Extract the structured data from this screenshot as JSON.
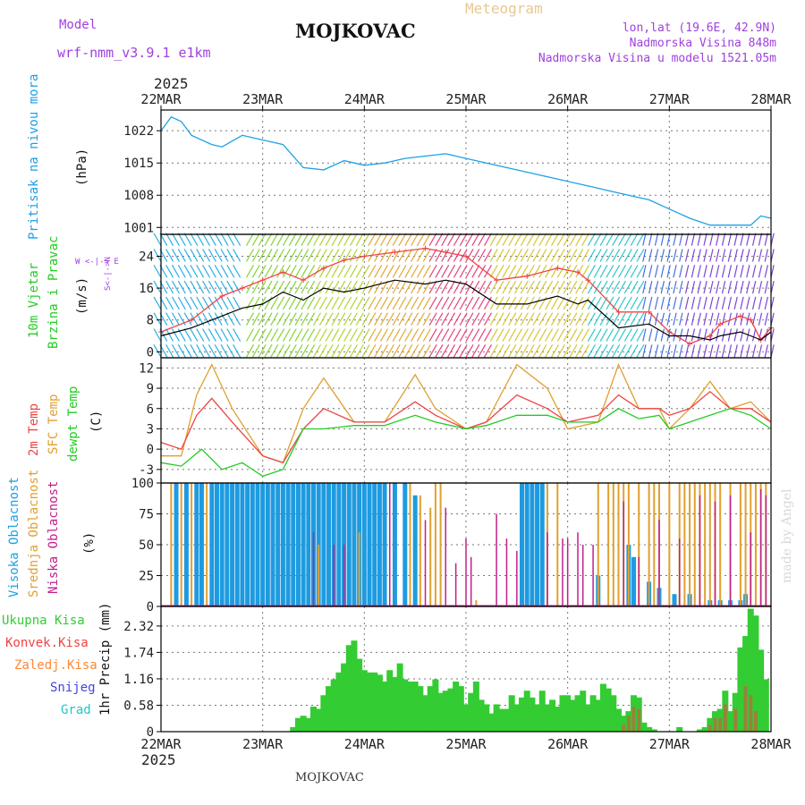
{
  "header": {
    "model_label": "Model",
    "model_name": "wrf-nmm_v3.9.1 e1km",
    "title": "MOJKOVAC",
    "meteogram": "Meteogram",
    "lonlat": "lon,lat (19.6E, 42.9N)",
    "altitude": "Nadmorska Visina 848m",
    "model_altitude": "Nadmorska Visina u modelu 1521.05m",
    "year_top": "2025",
    "year_bottom": "2025",
    "footer": "MOJKOVAC",
    "credit": "made by Angel"
  },
  "colors": {
    "pressure": "#1ea0e6",
    "wind_label": "#22cc22",
    "wind_mean": "#000000",
    "wind_gust": "#ee4444",
    "temp2m": "#ee4444",
    "sfc_temp": "#e0a030",
    "dewpt": "#22cc22",
    "cloud_high": "#1e9be0",
    "cloud_mid": "#e0a030",
    "cloud_low": "#c0208a",
    "precip_total": "#33cc33",
    "precip_conv": "#ee4444",
    "precip_freezing": "#ff8833",
    "snow": "#4444dd",
    "grad": "#22c6c6",
    "purple": "#a040e0"
  },
  "chart_data": [
    {
      "type": "line",
      "name": "pressure",
      "ylabel_side": "Pritisak na nivou mora",
      "ylabel": "(hPa)",
      "x_ticks": [
        "22MAR",
        "23MAR",
        "24MAR",
        "25MAR",
        "26MAR",
        "27MAR",
        "28MAR"
      ],
      "ylim": [
        999.5,
        1026.5
      ],
      "yticks": [
        1001,
        1008,
        1015,
        1022
      ],
      "grid": true,
      "x": [
        0,
        0.1,
        0.2,
        0.3,
        0.5,
        0.6,
        0.8,
        1,
        1.2,
        1.4,
        1.6,
        1.8,
        2,
        2.2,
        2.4,
        2.6,
        2.8,
        3,
        3.2,
        3.4,
        3.6,
        3.8,
        4,
        4.2,
        4.5,
        4.8,
        5,
        5.2,
        5.4,
        5.6,
        5.8,
        5.9,
        6
      ],
      "values": [
        1022,
        1025,
        1024,
        1021,
        1019,
        1018.5,
        1021,
        1020,
        1019,
        1014,
        1013.5,
        1015.5,
        1014.5,
        1015,
        1016,
        1016.5,
        1017,
        1016,
        1015,
        1014,
        1013,
        1012,
        1011,
        1010,
        1008.5,
        1007,
        1005,
        1003,
        1001.5,
        1001.5,
        1001.5,
        1003.5,
        1003
      ]
    },
    {
      "type": "line",
      "name": "wind",
      "ylabel_side_1": "10m Vjetar",
      "ylabel_side_2": "Brzina i Pravac",
      "ylabel": "(m/s)",
      "compass": "W <-|-> E",
      "compass_ns": "S<-|->N",
      "ylim": [
        -1.5,
        29.5
      ],
      "yticks": [
        0,
        8,
        16,
        24
      ],
      "series": [
        {
          "name": "mean",
          "x": [
            0,
            0.3,
            0.6,
            0.8,
            1,
            1.2,
            1.4,
            1.6,
            1.8,
            2,
            2.3,
            2.6,
            2.8,
            3,
            3.3,
            3.6,
            3.9,
            4.1,
            4.2,
            4.5,
            4.8,
            5,
            5.2,
            5.4,
            5.5,
            5.7,
            5.8,
            5.9,
            6
          ],
          "values": [
            4,
            6,
            9,
            11,
            12,
            15,
            13,
            16,
            15,
            16,
            18,
            17,
            18,
            17,
            12,
            12,
            14,
            12,
            13,
            6,
            7,
            4,
            4,
            3,
            4,
            5,
            4,
            3,
            5
          ]
        },
        {
          "name": "gust",
          "x": [
            0,
            0.3,
            0.6,
            0.8,
            1,
            1.2,
            1.4,
            1.6,
            1.8,
            2,
            2.3,
            2.6,
            2.8,
            3,
            3.3,
            3.6,
            3.9,
            4.1,
            4.2,
            4.5,
            4.8,
            5,
            5.2,
            5.4,
            5.5,
            5.7,
            5.8,
            5.9,
            6
          ],
          "values": [
            5,
            8,
            14,
            16,
            18,
            20,
            18,
            21,
            23,
            24,
            25,
            26,
            25,
            24,
            18,
            19,
            21,
            20,
            18,
            10,
            10,
            5,
            2,
            4,
            7,
            9,
            8,
            3,
            6
          ]
        }
      ]
    },
    {
      "type": "line",
      "name": "temperature",
      "ylabel_side_1": "2m Temp",
      "ylabel_side_2": "SFC Temp",
      "ylabel_side_3": "dewpt Temp",
      "ylabel": "(C)",
      "ylim": [
        -5,
        13.5
      ],
      "yticks": [
        -3,
        0,
        3,
        6,
        9,
        12
      ],
      "series": [
        {
          "name": "2m",
          "x": [
            0,
            0.2,
            0.35,
            0.5,
            0.7,
            1,
            1.2,
            1.4,
            1.6,
            1.9,
            2.2,
            2.5,
            2.7,
            3,
            3.2,
            3.5,
            3.8,
            4,
            4.3,
            4.5,
            4.7,
            4.9,
            5,
            5.2,
            5.4,
            5.6,
            5.8,
            6
          ],
          "values": [
            1,
            0,
            5,
            7.5,
            4,
            -1,
            -2,
            3,
            6,
            4,
            4,
            7,
            5,
            3,
            4,
            8,
            6,
            4,
            5,
            8,
            6,
            6,
            5,
            6,
            8.5,
            6,
            6,
            4
          ]
        },
        {
          "name": "sfc",
          "x": [
            0,
            0.2,
            0.35,
            0.5,
            0.7,
            1,
            1.2,
            1.4,
            1.6,
            1.9,
            2.2,
            2.5,
            2.7,
            3,
            3.2,
            3.5,
            3.8,
            4,
            4.3,
            4.5,
            4.7,
            4.9,
            5,
            5.2,
            5.4,
            5.6,
            5.8,
            6
          ],
          "values": [
            -1,
            -1,
            8,
            12.5,
            6,
            -1,
            -2,
            6,
            10.5,
            4,
            4,
            11,
            6,
            3,
            4,
            12.5,
            9,
            3,
            4,
            12.5,
            6,
            6,
            3,
            6,
            10,
            6,
            7,
            4
          ]
        },
        {
          "name": "dewpt",
          "x": [
            0,
            0.2,
            0.4,
            0.6,
            0.8,
            1,
            1.2,
            1.4,
            1.6,
            1.9,
            2.2,
            2.5,
            2.7,
            3,
            3.2,
            3.5,
            3.8,
            4,
            4.3,
            4.5,
            4.7,
            4.9,
            5,
            5.2,
            5.4,
            5.6,
            5.8,
            6
          ],
          "values": [
            -2,
            -2.5,
            0,
            -3,
            -2,
            -4,
            -3,
            3,
            3,
            3.5,
            3.5,
            5,
            4,
            3,
            3.5,
            5,
            5,
            4,
            4,
            6,
            4.5,
            5,
            3,
            4,
            5,
            6,
            5,
            3
          ]
        }
      ]
    },
    {
      "type": "bar",
      "name": "cloudiness",
      "ylabel_side_1": "Visoka Oblacnost",
      "ylabel_side_2": "Srednja Oblacnost",
      "ylabel_side_3": "Niska Oblacnost",
      "ylabel": "(%)",
      "ylim": [
        0,
        100
      ],
      "yticks": [
        0,
        25,
        50,
        75,
        100
      ],
      "series": [
        {
          "name": "high",
          "x": [
            0.15,
            0.25,
            0.35,
            0.4,
            0.5,
            0.55,
            0.6,
            0.65,
            0.7,
            0.75,
            0.8,
            0.85,
            0.9,
            0.95,
            1,
            1.05,
            1.1,
            1.15,
            1.2,
            1.25,
            1.3,
            1.35,
            1.4,
            1.45,
            1.5,
            1.55,
            1.6,
            1.65,
            1.7,
            1.75,
            1.8,
            1.85,
            1.9,
            1.95,
            2,
            2.05,
            2.1,
            2.15,
            2.2,
            2.3,
            2.4,
            2.5,
            3.55,
            3.6,
            3.65,
            3.7,
            3.75,
            4.3,
            4.6,
            4.65,
            4.8,
            4.9,
            5.05,
            5.2,
            5.4,
            5.5,
            5.6,
            5.7,
            5.75
          ],
          "values": [
            100,
            100,
            100,
            100,
            100,
            100,
            100,
            100,
            100,
            100,
            100,
            100,
            100,
            100,
            100,
            100,
            100,
            100,
            100,
            100,
            100,
            100,
            100,
            100,
            100,
            100,
            100,
            100,
            100,
            100,
            100,
            100,
            100,
            100,
            100,
            100,
            100,
            100,
            100,
            100,
            100,
            90,
            100,
            100,
            100,
            100,
            100,
            25,
            50,
            40,
            20,
            15,
            10,
            10,
            5,
            5,
            5,
            5,
            10
          ]
        },
        {
          "name": "mid",
          "x": [
            0.1,
            0.2,
            0.3,
            0.45,
            1.55,
            1.95,
            2.45,
            2.55,
            2.65,
            2.7,
            2.75,
            3.1,
            3.8,
            3.9,
            4.3,
            4.4,
            4.45,
            4.5,
            4.55,
            4.6,
            4.7,
            4.8,
            4.85,
            4.9,
            5,
            5.1,
            5.15,
            5.2,
            5.25,
            5.3,
            5.35,
            5.4,
            5.45,
            5.5,
            5.6,
            5.7,
            5.75,
            5.8,
            5.85,
            5.9,
            5.95
          ],
          "values": [
            100,
            100,
            100,
            100,
            50,
            60,
            100,
            90,
            80,
            100,
            100,
            5,
            100,
            100,
            100,
            100,
            100,
            100,
            100,
            100,
            100,
            100,
            100,
            100,
            100,
            100,
            100,
            100,
            100,
            100,
            100,
            100,
            100,
            100,
            100,
            100,
            100,
            100,
            100,
            100,
            100
          ]
        },
        {
          "name": "low",
          "x": [
            1.5,
            1.7,
            1.8,
            2.25,
            2.6,
            2.8,
            2.9,
            3,
            3.05,
            3.3,
            3.4,
            3.5,
            3.8,
            3.95,
            4,
            4.1,
            4.15,
            4.25,
            4.55,
            4.7,
            4.9,
            5.1,
            5.3,
            5.45,
            5.6,
            5.8,
            5.9,
            5.95
          ],
          "values": [
            60,
            50,
            50,
            100,
            70,
            80,
            35,
            55,
            40,
            75,
            55,
            45,
            60,
            55,
            55,
            60,
            50,
            50,
            85,
            40,
            70,
            55,
            90,
            85,
            90,
            60,
            95,
            90
          ]
        }
      ]
    },
    {
      "type": "bar",
      "name": "precipitation",
      "legend": [
        "Ukupna Kisa",
        "Konvek.Kisa",
        "Zaledj.Kisa",
        "Snijeg",
        "Grad"
      ],
      "ylabel": "1hr Precip (mm)",
      "ylim": [
        0,
        2.75
      ],
      "yticks": [
        0,
        0.58,
        1.16,
        1.74,
        2.32
      ],
      "yticklabels": [
        "0",
        "0.58",
        "1.16",
        "1.74",
        "2.32"
      ],
      "series": [
        {
          "name": "total",
          "x": [
            1.3,
            1.35,
            1.4,
            1.45,
            1.5,
            1.55,
            1.6,
            1.65,
            1.7,
            1.75,
            1.8,
            1.85,
            1.9,
            1.95,
            2,
            2.05,
            2.1,
            2.15,
            2.2,
            2.25,
            2.3,
            2.35,
            2.4,
            2.45,
            2.5,
            2.55,
            2.6,
            2.65,
            2.7,
            2.75,
            2.8,
            2.85,
            2.9,
            2.95,
            3,
            3.05,
            3.1,
            3.15,
            3.2,
            3.25,
            3.3,
            3.35,
            3.4,
            3.45,
            3.5,
            3.55,
            3.6,
            3.65,
            3.7,
            3.75,
            3.8,
            3.85,
            3.9,
            3.95,
            4,
            4.05,
            4.1,
            4.15,
            4.2,
            4.25,
            4.3,
            4.35,
            4.4,
            4.45,
            4.5,
            4.55,
            4.6,
            4.65,
            4.7,
            4.75,
            4.8,
            4.85,
            5.1,
            5.3,
            5.35,
            5.4,
            5.45,
            5.5,
            5.55,
            5.6,
            5.65,
            5.7,
            5.75,
            5.8,
            5.85,
            5.9,
            5.95
          ],
          "values": [
            0.1,
            0.3,
            0.35,
            0.3,
            0.55,
            0.5,
            0.8,
            1.0,
            1.15,
            1.3,
            1.5,
            1.9,
            2.0,
            1.6,
            1.35,
            1.3,
            1.3,
            1.25,
            1.1,
            1.35,
            1.2,
            1.5,
            1.15,
            1.1,
            1.1,
            1.0,
            0.8,
            1.0,
            1.15,
            0.85,
            0.9,
            0.95,
            1.1,
            1.0,
            0.6,
            0.85,
            1.1,
            0.7,
            0.6,
            0.4,
            0.6,
            0.5,
            0.5,
            0.8,
            0.6,
            0.75,
            0.9,
            0.75,
            0.6,
            0.9,
            0.6,
            0.7,
            0.55,
            0.8,
            0.8,
            0.7,
            0.8,
            0.9,
            0.6,
            0.8,
            0.7,
            1.05,
            0.95,
            0.8,
            0.5,
            0.35,
            0.45,
            0.8,
            0.75,
            0.2,
            0.1,
            0.05,
            0.1,
            0.05,
            0.1,
            0.3,
            0.45,
            0.5,
            0.9,
            0.45,
            0.85,
            1.85,
            2.1,
            2.7,
            2.55,
            1.8,
            1.15
          ]
        },
        {
          "name": "convective",
          "x": [
            4.55,
            4.6,
            4.65,
            4.7,
            5.4,
            5.45,
            5.5,
            5.55,
            5.65,
            5.75,
            5.8,
            5.85
          ],
          "values": [
            0.15,
            0.35,
            0.55,
            0.5,
            0.15,
            0.3,
            0.3,
            0.6,
            0.5,
            1.0,
            0.8,
            0.45
          ]
        }
      ]
    }
  ]
}
